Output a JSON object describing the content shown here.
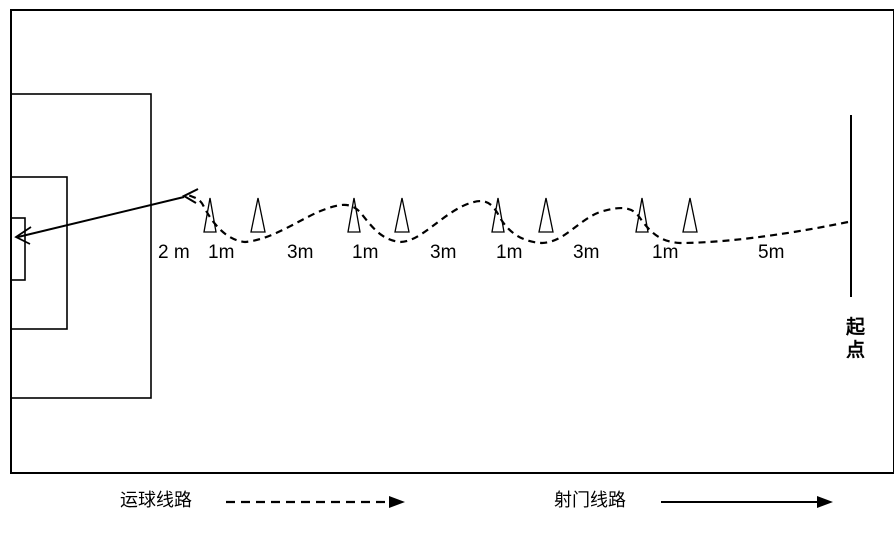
{
  "field": {
    "distance_labels": [
      "2 m",
      "1m",
      "3m",
      "1m",
      "3m",
      "1m",
      "3m",
      "1m",
      "5m"
    ],
    "start_label_chars": [
      "起",
      "点"
    ]
  },
  "legend": {
    "dribble_label": "运球线路",
    "shot_label": "射门线路"
  },
  "colors": {
    "line": "#000000",
    "background": "#ffffff"
  }
}
